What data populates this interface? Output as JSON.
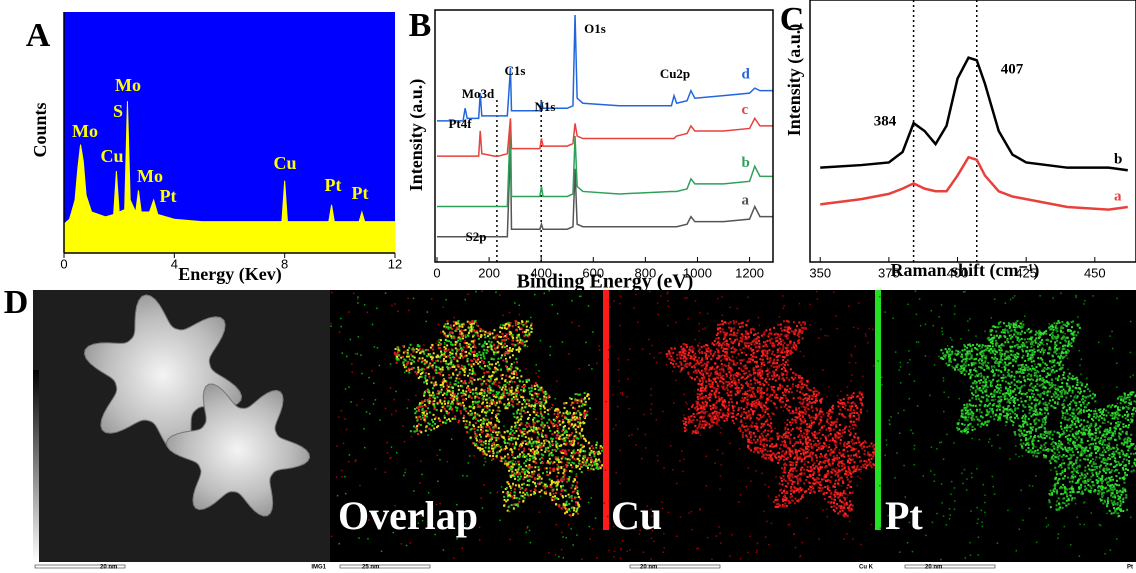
{
  "chart_data": [
    {
      "type": "area",
      "panel_label": "A",
      "x_label": "Energy (Kev)",
      "y_label": "Counts",
      "color": "#ffff00",
      "background": "#0000ff",
      "x": [
        0,
        0.2,
        0.4,
        0.5,
        0.6,
        0.7,
        0.8,
        1.0,
        1.5,
        1.8,
        1.9,
        2.0,
        2.2,
        2.3,
        2.4,
        2.6,
        2.7,
        2.8,
        3.1,
        3.25,
        3.4,
        4,
        5,
        6,
        7,
        7.9,
        8.0,
        8.1,
        9,
        9.6,
        9.7,
        9.8,
        10.7,
        10.8,
        10.9,
        12
      ],
      "values": [
        12,
        14,
        22,
        35,
        45,
        38,
        24,
        17,
        15,
        16,
        34,
        17,
        18,
        63,
        22,
        17,
        26,
        17,
        17,
        22,
        16,
        14,
        13,
        13,
        13,
        13,
        30,
        13,
        13,
        13,
        20,
        13,
        13,
        17,
        13,
        13
      ],
      "xlim": [
        0,
        12
      ],
      "xticks": [
        0,
        4,
        8,
        12
      ],
      "ylim": [
        0,
        100
      ],
      "annotations": [
        "Mo",
        "Cu",
        "Mo",
        "S",
        "Mo",
        "Pt",
        "Cu",
        "Pt",
        "Pt"
      ]
    },
    {
      "type": "line",
      "panel_label": "B",
      "x_label": "Binding Energy (eV)",
      "y_label": "Intensity (a.u.)",
      "x": [
        0,
        100,
        108,
        116,
        160,
        166,
        172,
        220,
        228,
        236,
        270,
        282,
        286,
        300,
        395,
        401,
        407,
        500,
        522,
        530,
        538,
        560,
        700,
        900,
        910,
        920,
        960,
        975,
        990,
        1100,
        1200,
        1220,
        1240,
        1290
      ],
      "series": [
        {
          "name": "a",
          "color": "#555555",
          "values": [
            10,
            10,
            10,
            10,
            10,
            10,
            10,
            10,
            10,
            10,
            10,
            47,
            13,
            13,
            13,
            15,
            13,
            13,
            14,
            37,
            15,
            14,
            14,
            14,
            14,
            14,
            15,
            18,
            16,
            16,
            17,
            22,
            18,
            18
          ]
        },
        {
          "name": "b",
          "color": "#2ea05a",
          "values": [
            22,
            22,
            22,
            22,
            22,
            22,
            22,
            22,
            22,
            22,
            22,
            56,
            26,
            26,
            26,
            30,
            26,
            26,
            27,
            50,
            30,
            28,
            27,
            28,
            28,
            28,
            29,
            33,
            31,
            31,
            32,
            38,
            34,
            34
          ]
        },
        {
          "name": "c",
          "color": "#e8413c",
          "values": [
            42,
            42,
            42,
            42,
            42,
            52,
            43,
            42,
            42,
            42,
            43,
            57,
            45,
            45,
            45,
            49,
            46,
            46,
            47,
            55,
            50,
            49,
            49,
            49,
            49,
            50,
            51,
            54,
            52,
            52,
            53,
            57,
            54,
            54
          ]
        },
        {
          "name": "d",
          "color": "#2266dd",
          "values": [
            56,
            56,
            61,
            57,
            57,
            67,
            58,
            58,
            58,
            58,
            58,
            77,
            60,
            60,
            60,
            64,
            61,
            61,
            62,
            98,
            65,
            63,
            62,
            62,
            66,
            63,
            64,
            68,
            65,
            66,
            67,
            69,
            68,
            68
          ]
        }
      ],
      "xlim": [
        0,
        1290
      ],
      "xticks": [
        0,
        200,
        400,
        600,
        800,
        1000,
        1200
      ],
      "ylim": [
        0,
        100
      ],
      "annotations": [
        "Pt4f",
        "Mo3d",
        "C1s",
        "N1s",
        "O1s",
        "Cu2p",
        "S2p"
      ]
    },
    {
      "type": "line",
      "panel_label": "C",
      "x_label": "Raman shift (cm⁻¹)",
      "y_label": "Intensity (a.u.)",
      "x": [
        350,
        365,
        375,
        380,
        384,
        388,
        392,
        396,
        400,
        404,
        407,
        410,
        415,
        420,
        425,
        440,
        455,
        462
      ],
      "series": [
        {
          "name": "a",
          "color": "#e8413c",
          "values": [
            22,
            24,
            26,
            28,
            30,
            28,
            27,
            27,
            33,
            40,
            39,
            33,
            27,
            25,
            24,
            21,
            20,
            21
          ]
        },
        {
          "name": "b",
          "color": "#000000",
          "values": [
            36,
            37,
            38,
            42,
            53,
            50,
            45,
            52,
            70,
            78,
            77,
            68,
            50,
            41,
            38,
            36,
            36,
            35
          ]
        }
      ],
      "xlim": [
        347,
        465
      ],
      "xticks": [
        350,
        375,
        400,
        425,
        450
      ],
      "ylim": [
        0,
        100
      ],
      "annotations": [
        "384",
        "407"
      ]
    }
  ],
  "images": {
    "panel_label": "D",
    "labels": [
      "Overlap",
      "Cu",
      "Pt"
    ],
    "scale_bars": [
      "20 nm",
      "IMG1",
      "25 nm",
      "20 nm",
      "Cu K",
      "20 nm",
      "Pt"
    ]
  }
}
